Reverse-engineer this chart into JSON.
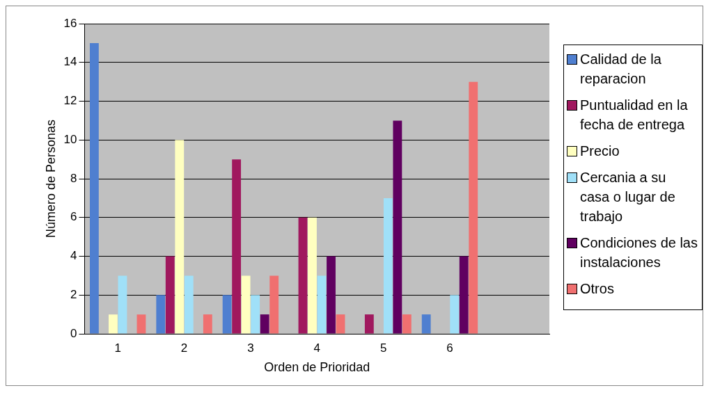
{
  "chart_data": {
    "type": "bar",
    "xlabel": "Orden de Prioridad",
    "ylabel": "Número de Personas",
    "categories": [
      "1",
      "2",
      "3",
      "4",
      "5",
      "6",
      null
    ],
    "series": [
      {
        "name": "Calidad de la reparacion",
        "color": "#4f7fd0",
        "values": [
          15,
          2,
          2,
          0,
          0,
          1,
          null
        ]
      },
      {
        "name": "Puntualidad en la fecha de entrega",
        "color": "#a0185e",
        "values": [
          0,
          4,
          9,
          6,
          1,
          0,
          null
        ]
      },
      {
        "name": "Precio",
        "color": "#ffffc0",
        "values": [
          1,
          10,
          3,
          6,
          0,
          0,
          null
        ]
      },
      {
        "name": "Cercania a su casa o lugar de trabajo",
        "color": "#a0e0f8",
        "values": [
          3,
          3,
          2,
          3,
          7,
          2,
          null
        ]
      },
      {
        "name": "Condiciones de las instalaciones",
        "color": "#600060",
        "values": [
          0,
          0,
          1,
          4,
          11,
          4,
          null
        ]
      },
      {
        "name": "Otros",
        "color": "#f07070",
        "values": [
          1,
          1,
          3,
          1,
          1,
          13,
          null
        ]
      }
    ],
    "ylim": [
      0,
      16
    ],
    "yticks": [
      0,
      2,
      4,
      6,
      8,
      10,
      12,
      14,
      16
    ],
    "grid": "y",
    "legend": "right"
  }
}
